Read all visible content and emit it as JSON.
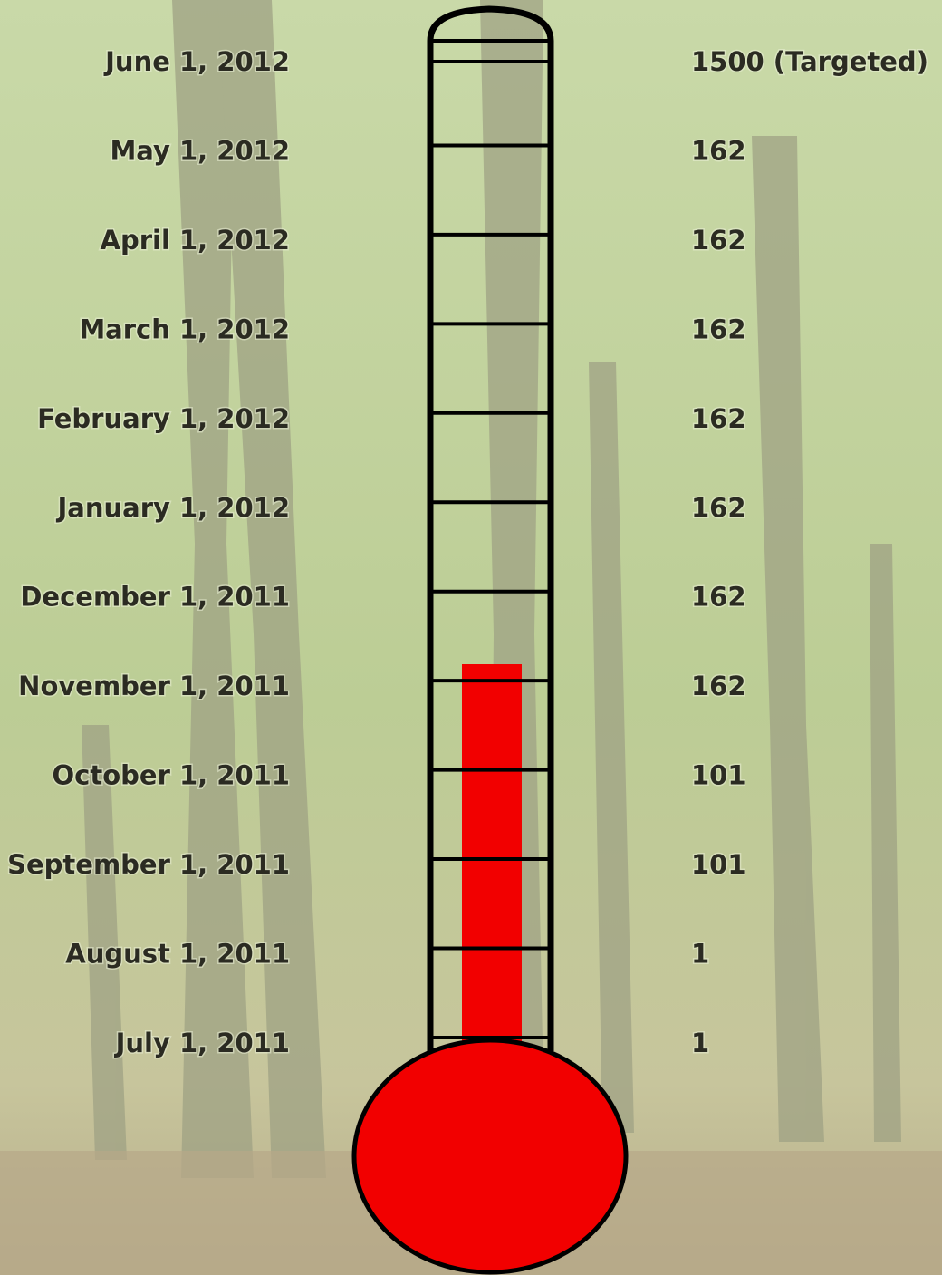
{
  "rows": [
    {
      "date": "June 1, 2012",
      "value": "1500  (Targeted)"
    },
    {
      "date": "May 1, 2012",
      "value": "162"
    },
    {
      "date": "April 1, 2012",
      "value": "162"
    },
    {
      "date": "March 1, 2012",
      "value": "162"
    },
    {
      "date": "February 1, 2012",
      "value": "162"
    },
    {
      "date": "January 1, 2012",
      "value": "162"
    },
    {
      "date": "December 1, 2011",
      "value": "162"
    },
    {
      "date": "November 1, 2011",
      "value": "162"
    },
    {
      "date": "October 1, 2011",
      "value": "101"
    },
    {
      "date": "September 1, 2011",
      "value": "101"
    },
    {
      "date": "August 1, 2011",
      "value": "1"
    },
    {
      "date": "July 1, 2011",
      "value": "1"
    }
  ]
}
